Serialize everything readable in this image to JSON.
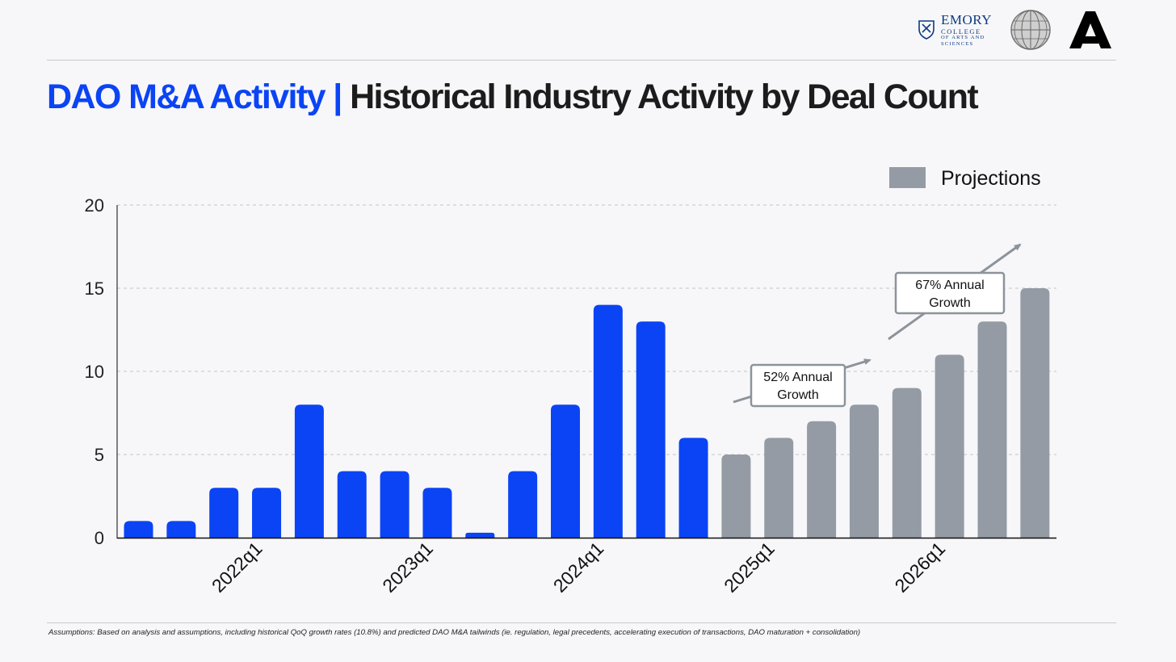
{
  "title": {
    "part1": "DAO M&A Activity |",
    "part2": "Historical Industry Activity by Deal Count"
  },
  "logos": {
    "emory_name": "EMORY",
    "emory_line2": "COLLEGE",
    "emory_line3": "OF ARTS AND",
    "emory_line4": "SCIENCES"
  },
  "colors": {
    "actual": "#0b44f5",
    "projection": "#949ba4",
    "title_accent": "#0b44f5",
    "title_text": "#1c1c1c"
  },
  "chart_data": {
    "type": "bar",
    "ylim": [
      0,
      20
    ],
    "yticks": [
      0,
      5,
      10,
      15,
      20
    ],
    "grid": true,
    "legend": {
      "label": "Projections",
      "position": "top-right"
    },
    "xtick_labels": [
      "2022q1",
      "2023q1",
      "2024q1",
      "2025q1",
      "2026q1"
    ],
    "series": [
      {
        "values": [
          1,
          1,
          3,
          3,
          8,
          4,
          4,
          3,
          0.3,
          4,
          8,
          14,
          13,
          6
        ]
      },
      {
        "name": "Projections",
        "values": [
          5,
          6,
          7,
          8,
          9,
          11,
          13,
          15
        ]
      }
    ],
    "annotations": [
      {
        "text_line1": "52% Annual",
        "text_line2": "Growth"
      },
      {
        "text_line1": "67% Annual",
        "text_line2": "Growth"
      }
    ]
  },
  "footnote": "Assumptions: Based on analysis and assumptions, including historical QoQ growth rates (10.8%) and predicted DAO M&A tailwinds (ie. regulation, legal precedents, accelerating execution of transactions, DAO maturation + consolidation)"
}
